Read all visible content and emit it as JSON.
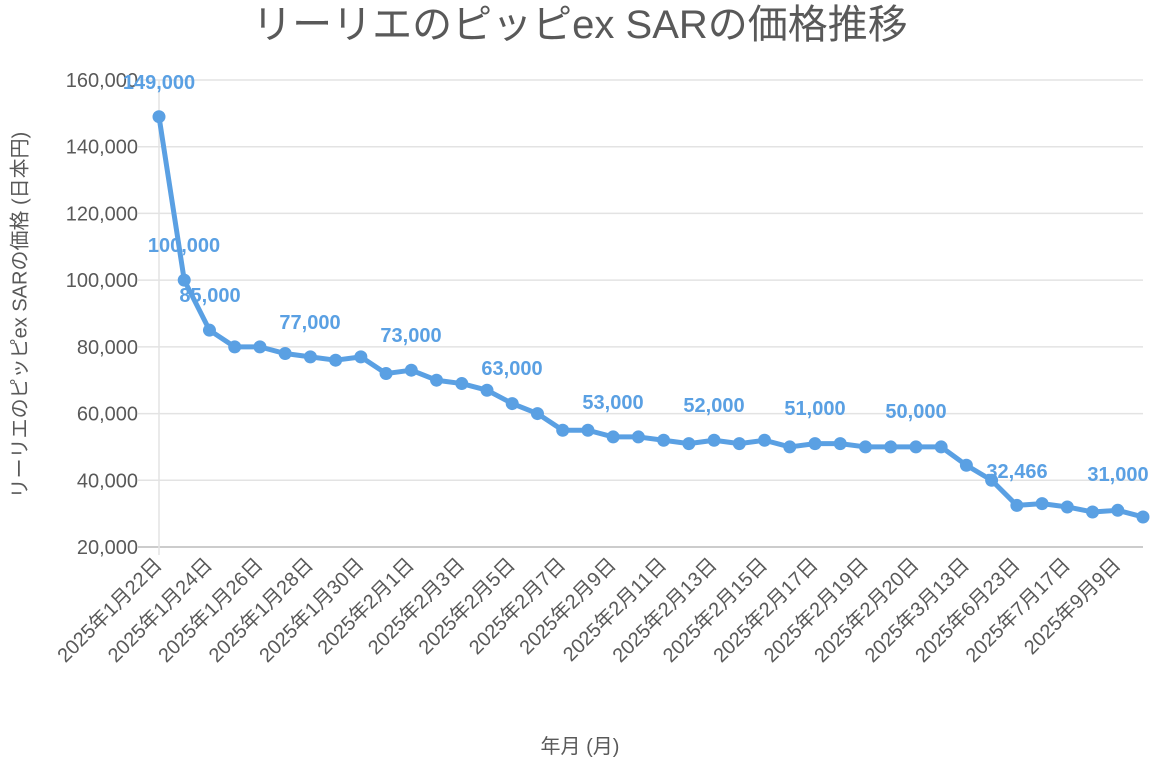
{
  "chart_data": {
    "type": "line",
    "title": "リーリエのピッピex SARの価格推移",
    "xlabel": "年月 (月)",
    "ylabel": "リーリエのピッピex SARの価格 (日本円)",
    "ylim": [
      20000,
      160000
    ],
    "yticks": [
      "20,000",
      "40,000",
      "60,000",
      "80,000",
      "100,000",
      "120,000",
      "140,000",
      "160,000"
    ],
    "grid": true,
    "legend": "none",
    "series_color": "#5aa0e3",
    "x_tick_labels": [
      "2025年1月22日",
      "2025年1月24日",
      "2025年1月26日",
      "2025年1月28日",
      "2025年1月30日",
      "2025年2月1日",
      "2025年2月3日",
      "2025年2月5日",
      "2025年2月7日",
      "2025年2月9日",
      "2025年2月11日",
      "2025年2月13日",
      "2025年2月15日",
      "2025年2月17日",
      "2025年2月19日",
      "2025年2月20日",
      "2025年3月13日",
      "2025年6月23日",
      "2025年7月17日",
      "2025年9月9日"
    ],
    "series": [
      {
        "name": "リーリエのピッピex SAR",
        "values": [
          149000,
          100000,
          85000,
          80000,
          80000,
          78000,
          77000,
          76000,
          77000,
          72000,
          73000,
          70000,
          69000,
          67000,
          63000,
          60000,
          55000,
          55000,
          53000,
          53000,
          52000,
          51000,
          52000,
          51000,
          52000,
          50000,
          51000,
          51000,
          50000,
          50000,
          50000,
          50000,
          44500,
          40000,
          32466,
          33000,
          32000,
          30500,
          31000,
          29000
        ]
      }
    ],
    "data_labels": [
      {
        "index": 0,
        "text": "149,000"
      },
      {
        "index": 1,
        "text": "100,000"
      },
      {
        "index": 2,
        "text": "85,000"
      },
      {
        "index": 6,
        "text": "77,000"
      },
      {
        "index": 10,
        "text": "73,000"
      },
      {
        "index": 14,
        "text": "63,000"
      },
      {
        "index": 18,
        "text": "53,000"
      },
      {
        "index": 22,
        "text": "52,000"
      },
      {
        "index": 26,
        "text": "51,000"
      },
      {
        "index": 30,
        "text": "50,000"
      },
      {
        "index": 34,
        "text": "32,466"
      },
      {
        "index": 38,
        "text": "31,000"
      }
    ]
  }
}
